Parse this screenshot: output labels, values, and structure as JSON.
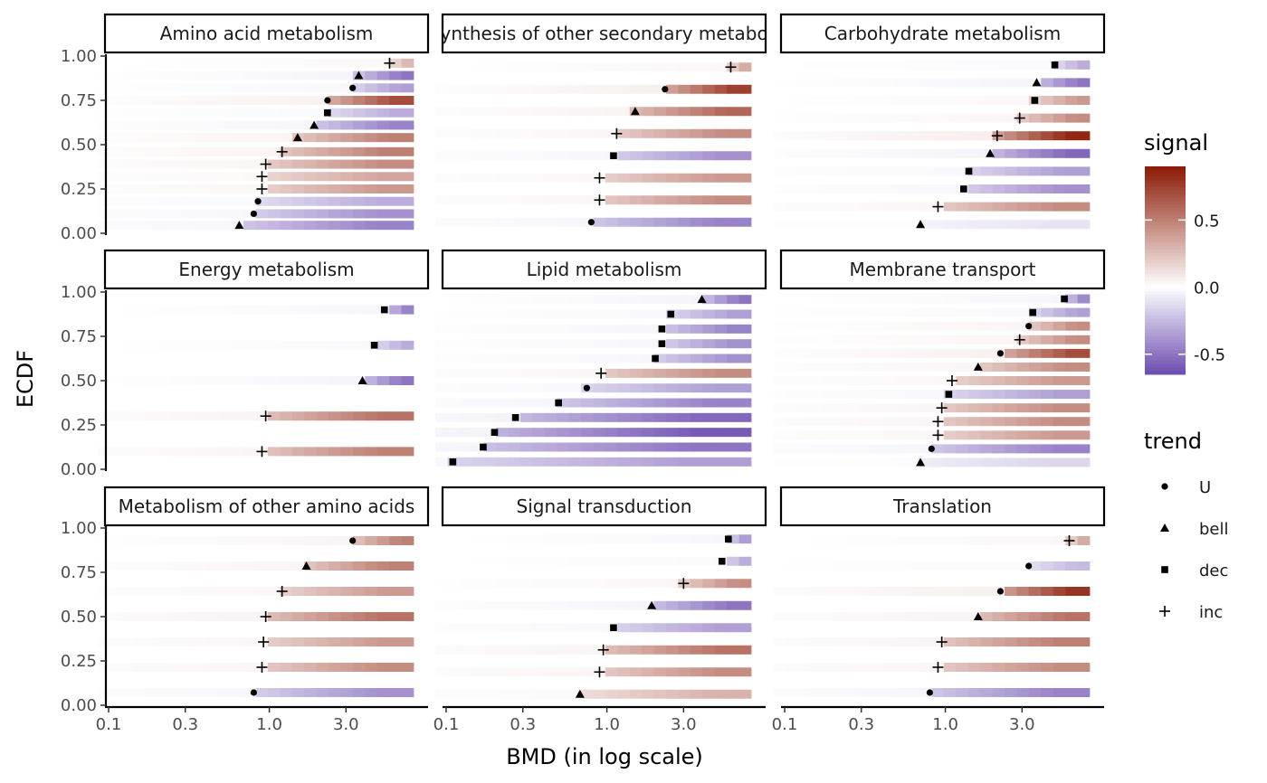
{
  "chart_data": {
    "type": "heatmap",
    "xlabel": "BMD (in log scale)",
    "ylabel": "ECDF",
    "x_scale": "log10",
    "xlim": [
      0.1,
      7.9
    ],
    "x_ticks": [
      0.1,
      0.3,
      1.0,
      3.0
    ],
    "x_tick_labels": [
      "0.1",
      "0.3",
      "1.0",
      "3.0"
    ],
    "ylim": [
      0,
      1
    ],
    "y_ticks": [
      0,
      0.25,
      0.5,
      0.75,
      1.0
    ],
    "y_tick_labels": [
      "0.00",
      "0.25",
      "0.50",
      "0.75",
      "1.00"
    ],
    "grid": false,
    "legend_signal": {
      "title": "signal",
      "low_color": "#6B4CB0",
      "mid_color": "#FFFFFF",
      "high_color": "#8B1A05",
      "range": [
        -0.65,
        0.9
      ],
      "breaks": [
        0.5,
        0.0,
        -0.5
      ],
      "labels": [
        "0.5",
        "0.0",
        "-0.5"
      ]
    },
    "legend_trend": {
      "title": "trend",
      "items": [
        {
          "label": "U",
          "shape": "circle"
        },
        {
          "label": "bell",
          "shape": "triangle"
        },
        {
          "label": "dec",
          "shape": "square"
        },
        {
          "label": "inc",
          "shape": "plus"
        }
      ]
    },
    "facets": [
      {
        "title": "Amino acid metabolism",
        "points": [
          {
            "bmd": 0.65,
            "ecdf": 0.045,
            "trend": "bell",
            "signal": -0.45
          },
          {
            "bmd": 0.8,
            "ecdf": 0.11,
            "trend": "U",
            "signal": -0.4
          },
          {
            "bmd": 0.85,
            "ecdf": 0.18,
            "trend": "U",
            "signal": -0.3
          },
          {
            "bmd": 0.9,
            "ecdf": 0.25,
            "trend": "inc",
            "signal": 0.4
          },
          {
            "bmd": 0.9,
            "ecdf": 0.32,
            "trend": "inc",
            "signal": 0.35
          },
          {
            "bmd": 0.95,
            "ecdf": 0.39,
            "trend": "inc",
            "signal": 0.45
          },
          {
            "bmd": 1.2,
            "ecdf": 0.46,
            "trend": "inc",
            "signal": 0.5
          },
          {
            "bmd": 1.5,
            "ecdf": 0.54,
            "trend": "bell",
            "signal": 0.5
          },
          {
            "bmd": 1.9,
            "ecdf": 0.61,
            "trend": "bell",
            "signal": -0.45
          },
          {
            "bmd": 2.3,
            "ecdf": 0.68,
            "trend": "dec",
            "signal": -0.3
          },
          {
            "bmd": 2.3,
            "ecdf": 0.75,
            "trend": "U",
            "signal": 0.7
          },
          {
            "bmd": 3.3,
            "ecdf": 0.82,
            "trend": "U",
            "signal": -0.35
          },
          {
            "bmd": 3.6,
            "ecdf": 0.89,
            "trend": "bell",
            "signal": -0.5
          },
          {
            "bmd": 5.6,
            "ecdf": 0.96,
            "trend": "inc",
            "signal": 0.3
          }
        ]
      },
      {
        "title": "Biosynthesis of other secondary metabolites",
        "points": [
          {
            "bmd": 0.8,
            "ecdf": 0.0625,
            "trend": "U",
            "signal": -0.45
          },
          {
            "bmd": 0.9,
            "ecdf": 0.1875,
            "trend": "inc",
            "signal": 0.45
          },
          {
            "bmd": 0.9,
            "ecdf": 0.3125,
            "trend": "inc",
            "signal": 0.4
          },
          {
            "bmd": 1.1,
            "ecdf": 0.4375,
            "trend": "dec",
            "signal": -0.4
          },
          {
            "bmd": 1.15,
            "ecdf": 0.5625,
            "trend": "inc",
            "signal": 0.45
          },
          {
            "bmd": 1.5,
            "ecdf": 0.6875,
            "trend": "bell",
            "signal": 0.6
          },
          {
            "bmd": 2.3,
            "ecdf": 0.8125,
            "trend": "U",
            "signal": 0.75
          },
          {
            "bmd": 5.9,
            "ecdf": 0.9375,
            "trend": "inc",
            "signal": 0.4
          }
        ]
      },
      {
        "title": "Carbohydrate metabolism",
        "points": [
          {
            "bmd": 0.7,
            "ecdf": 0.05,
            "trend": "bell",
            "signal": -0.1
          },
          {
            "bmd": 0.9,
            "ecdf": 0.15,
            "trend": "inc",
            "signal": 0.45
          },
          {
            "bmd": 1.3,
            "ecdf": 0.25,
            "trend": "dec",
            "signal": -0.4
          },
          {
            "bmd": 1.4,
            "ecdf": 0.35,
            "trend": "dec",
            "signal": -0.35
          },
          {
            "bmd": 1.9,
            "ecdf": 0.45,
            "trend": "bell",
            "signal": -0.55
          },
          {
            "bmd": 2.1,
            "ecdf": 0.55,
            "trend": "inc",
            "signal": 0.85
          },
          {
            "bmd": 2.9,
            "ecdf": 0.65,
            "trend": "inc",
            "signal": 0.45
          },
          {
            "bmd": 3.6,
            "ecdf": 0.75,
            "trend": "dec",
            "signal": 0.4
          },
          {
            "bmd": 3.7,
            "ecdf": 0.85,
            "trend": "bell",
            "signal": -0.5
          },
          {
            "bmd": 4.8,
            "ecdf": 0.95,
            "trend": "dec",
            "signal": -0.3
          }
        ]
      },
      {
        "title": "Energy metabolism",
        "points": [
          {
            "bmd": 0.9,
            "ecdf": 0.1,
            "trend": "inc",
            "signal": 0.5
          },
          {
            "bmd": 0.95,
            "ecdf": 0.3,
            "trend": "inc",
            "signal": 0.55
          },
          {
            "bmd": 3.8,
            "ecdf": 0.5,
            "trend": "bell",
            "signal": -0.5
          },
          {
            "bmd": 4.5,
            "ecdf": 0.7,
            "trend": "dec",
            "signal": -0.3
          },
          {
            "bmd": 5.2,
            "ecdf": 0.9,
            "trend": "dec",
            "signal": -0.45
          }
        ]
      },
      {
        "title": "Lipid metabolism",
        "points": [
          {
            "bmd": 0.11,
            "ecdf": 0.0417,
            "trend": "dec",
            "signal": -0.35
          },
          {
            "bmd": 0.17,
            "ecdf": 0.125,
            "trend": "dec",
            "signal": -0.5
          },
          {
            "bmd": 0.2,
            "ecdf": 0.2083,
            "trend": "dec",
            "signal": -0.6
          },
          {
            "bmd": 0.27,
            "ecdf": 0.2917,
            "trend": "dec",
            "signal": -0.55
          },
          {
            "bmd": 0.5,
            "ecdf": 0.375,
            "trend": "dec",
            "signal": -0.45
          },
          {
            "bmd": 0.75,
            "ecdf": 0.4583,
            "trend": "U",
            "signal": -0.35
          },
          {
            "bmd": 0.92,
            "ecdf": 0.5417,
            "trend": "inc",
            "signal": 0.45
          },
          {
            "bmd": 2.0,
            "ecdf": 0.625,
            "trend": "dec",
            "signal": -0.4
          },
          {
            "bmd": 2.2,
            "ecdf": 0.7083,
            "trend": "dec",
            "signal": -0.4
          },
          {
            "bmd": 2.2,
            "ecdf": 0.7917,
            "trend": "dec",
            "signal": -0.45
          },
          {
            "bmd": 2.5,
            "ecdf": 0.875,
            "trend": "dec",
            "signal": -0.35
          },
          {
            "bmd": 3.9,
            "ecdf": 0.9583,
            "trend": "bell",
            "signal": -0.5
          }
        ]
      },
      {
        "title": "Membrane transport",
        "points": [
          {
            "bmd": 0.7,
            "ecdf": 0.0385,
            "trend": "bell",
            "signal": -0.15
          },
          {
            "bmd": 0.82,
            "ecdf": 0.1154,
            "trend": "U",
            "signal": -0.45
          },
          {
            "bmd": 0.9,
            "ecdf": 0.1923,
            "trend": "inc",
            "signal": 0.4
          },
          {
            "bmd": 0.9,
            "ecdf": 0.2692,
            "trend": "inc",
            "signal": 0.45
          },
          {
            "bmd": 0.95,
            "ecdf": 0.3462,
            "trend": "inc",
            "signal": 0.45
          },
          {
            "bmd": 1.05,
            "ecdf": 0.4231,
            "trend": "dec",
            "signal": -0.35
          },
          {
            "bmd": 1.1,
            "ecdf": 0.5,
            "trend": "inc",
            "signal": 0.4
          },
          {
            "bmd": 1.6,
            "ecdf": 0.5769,
            "trend": "bell",
            "signal": 0.45
          },
          {
            "bmd": 2.2,
            "ecdf": 0.6538,
            "trend": "U",
            "signal": 0.7
          },
          {
            "bmd": 2.9,
            "ecdf": 0.7308,
            "trend": "inc",
            "signal": 0.45
          },
          {
            "bmd": 3.3,
            "ecdf": 0.8077,
            "trend": "U",
            "signal": 0.45
          },
          {
            "bmd": 3.5,
            "ecdf": 0.8846,
            "trend": "dec",
            "signal": -0.35
          },
          {
            "bmd": 5.5,
            "ecdf": 0.9615,
            "trend": "dec",
            "signal": -0.45
          }
        ]
      },
      {
        "title": "Metabolism of other amino acids",
        "points": [
          {
            "bmd": 0.8,
            "ecdf": 0.0714,
            "trend": "U",
            "signal": -0.4
          },
          {
            "bmd": 0.9,
            "ecdf": 0.2143,
            "trend": "inc",
            "signal": 0.45
          },
          {
            "bmd": 0.92,
            "ecdf": 0.3571,
            "trend": "inc",
            "signal": 0.4
          },
          {
            "bmd": 0.95,
            "ecdf": 0.5,
            "trend": "inc",
            "signal": 0.55
          },
          {
            "bmd": 1.2,
            "ecdf": 0.6429,
            "trend": "inc",
            "signal": 0.4
          },
          {
            "bmd": 1.7,
            "ecdf": 0.7857,
            "trend": "bell",
            "signal": 0.5
          },
          {
            "bmd": 3.3,
            "ecdf": 0.9286,
            "trend": "U",
            "signal": 0.5
          }
        ]
      },
      {
        "title": "Signal transduction",
        "points": [
          {
            "bmd": 0.68,
            "ecdf": 0.0625,
            "trend": "bell",
            "signal": 0.3
          },
          {
            "bmd": 0.9,
            "ecdf": 0.1875,
            "trend": "inc",
            "signal": 0.45
          },
          {
            "bmd": 0.95,
            "ecdf": 0.3125,
            "trend": "inc",
            "signal": 0.55
          },
          {
            "bmd": 1.1,
            "ecdf": 0.4375,
            "trend": "dec",
            "signal": -0.35
          },
          {
            "bmd": 1.9,
            "ecdf": 0.5625,
            "trend": "bell",
            "signal": -0.5
          },
          {
            "bmd": 3.0,
            "ecdf": 0.6875,
            "trend": "inc",
            "signal": 0.45
          },
          {
            "bmd": 5.2,
            "ecdf": 0.8125,
            "trend": "dec",
            "signal": -0.3
          },
          {
            "bmd": 5.7,
            "ecdf": 0.9375,
            "trend": "dec",
            "signal": -0.4
          }
        ]
      },
      {
        "title": "Translation",
        "points": [
          {
            "bmd": 0.8,
            "ecdf": 0.0714,
            "trend": "U",
            "signal": -0.45
          },
          {
            "bmd": 0.9,
            "ecdf": 0.2143,
            "trend": "inc",
            "signal": 0.45
          },
          {
            "bmd": 0.95,
            "ecdf": 0.3571,
            "trend": "inc",
            "signal": 0.5
          },
          {
            "bmd": 1.6,
            "ecdf": 0.5,
            "trend": "bell",
            "signal": 0.55
          },
          {
            "bmd": 2.2,
            "ecdf": 0.6429,
            "trend": "U",
            "signal": 0.8
          },
          {
            "bmd": 3.3,
            "ecdf": 0.7857,
            "trend": "U",
            "signal": -0.25
          },
          {
            "bmd": 5.9,
            "ecdf": 0.9286,
            "trend": "inc",
            "signal": 0.4
          }
        ]
      }
    ]
  }
}
